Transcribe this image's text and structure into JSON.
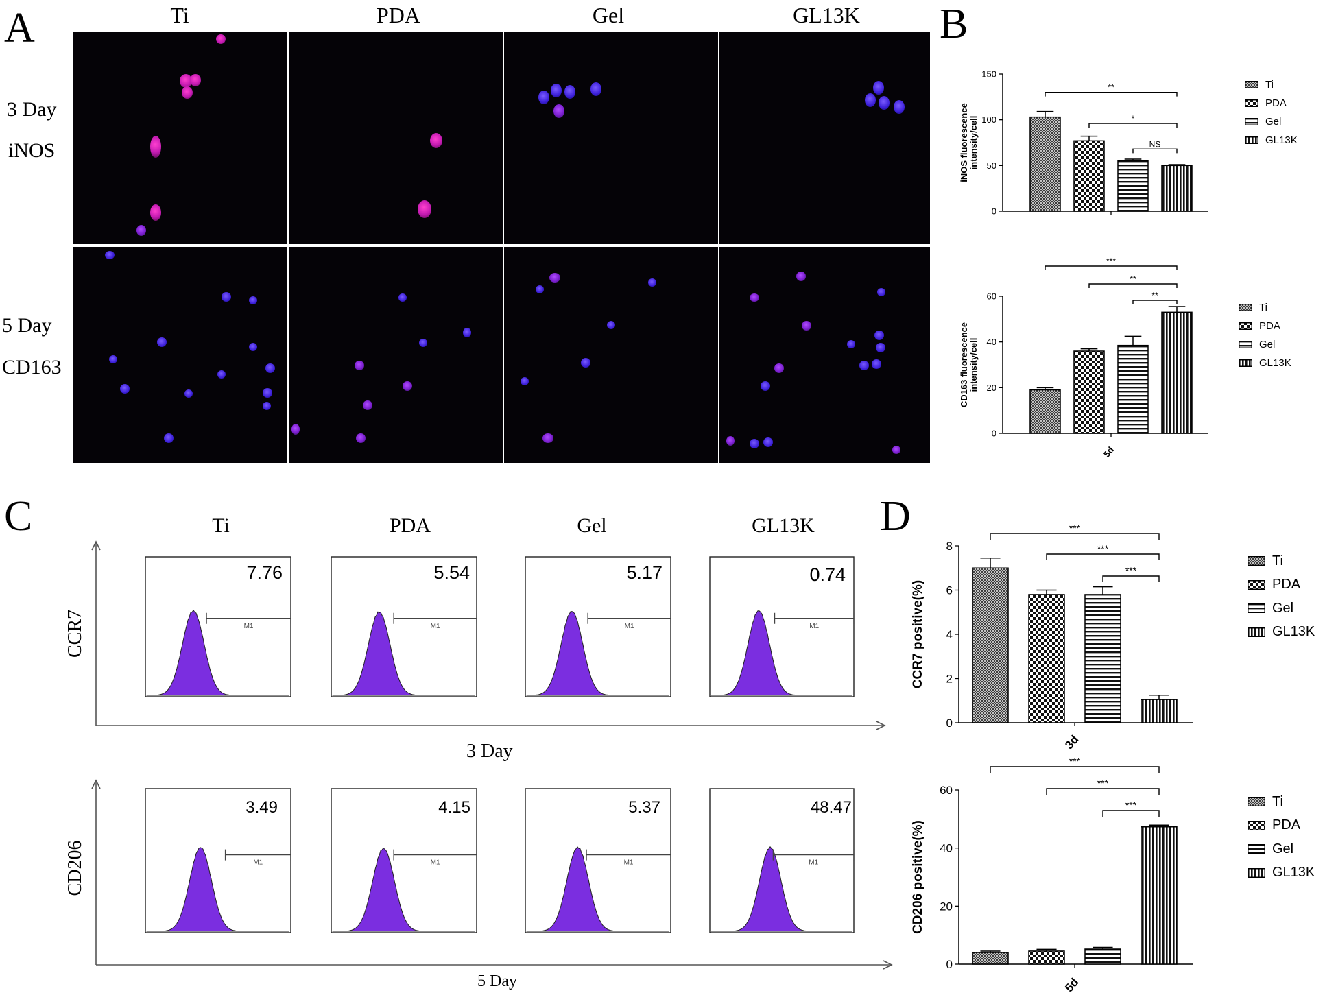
{
  "panels": {
    "a": "A",
    "b": "B",
    "c": "C",
    "d": "D"
  },
  "panel_a": {
    "columns": [
      "Ti",
      "PDA",
      "Gel",
      "GL13K"
    ],
    "rows": [
      {
        "day": "3 Day",
        "marker": "iNOS"
      },
      {
        "day": "5 Day",
        "marker": "CD163"
      }
    ]
  },
  "panel_c": {
    "columns": [
      "Ti",
      "PDA",
      "Gel",
      "GL13K"
    ],
    "gate_label": "M1",
    "rows": [
      {
        "marker": "CCR7",
        "day": "3 Day",
        "values": [
          "7.76",
          "5.54",
          "5.17",
          "0.74"
        ]
      },
      {
        "marker": "CD206",
        "day": "5 Day",
        "values": [
          "3.49",
          "4.15",
          "5.37",
          "48.47"
        ]
      }
    ]
  },
  "colors": {
    "pink": "#c21ab0",
    "blue": "#3b1fd8",
    "histogram": "#7b2ee0"
  },
  "chart_data": [
    {
      "id": "B-top",
      "type": "bar",
      "ylabel": "iNOS fluorescence intensity/cell",
      "xlabel": "",
      "ylim": [
        0,
        150
      ],
      "yticks": [
        0,
        50,
        100,
        150
      ],
      "categories": [
        "Ti",
        "PDA",
        "Gel",
        "GL13K"
      ],
      "values": [
        103,
        77,
        55,
        50
      ],
      "errors": [
        6,
        5,
        2,
        1
      ],
      "significance": [
        {
          "from": "Ti",
          "to": "GL13K",
          "label": "**"
        },
        {
          "from": "PDA",
          "to": "GL13K",
          "label": "*"
        },
        {
          "from": "Gel",
          "to": "GL13K",
          "label": "NS"
        }
      ],
      "legend": [
        "Ti",
        "PDA",
        "Gel",
        "GL13K"
      ]
    },
    {
      "id": "B-bottom",
      "type": "bar",
      "ylabel": "CD163 fluorescence intensity/cell",
      "xlabel": "5d",
      "ylim": [
        0,
        60
      ],
      "yticks": [
        0,
        20,
        40,
        60
      ],
      "categories": [
        "Ti",
        "PDA",
        "Gel",
        "GL13K"
      ],
      "values": [
        19,
        36,
        38.5,
        53
      ],
      "errors": [
        1,
        1,
        4,
        2.5
      ],
      "significance": [
        {
          "from": "Ti",
          "to": "GL13K",
          "label": "***"
        },
        {
          "from": "PDA",
          "to": "GL13K",
          "label": "**"
        },
        {
          "from": "Gel",
          "to": "GL13K",
          "label": "**"
        }
      ],
      "legend": [
        "Ti",
        "PDA",
        "Gel",
        "GL13K"
      ]
    },
    {
      "id": "D-top",
      "type": "bar",
      "ylabel": "CCR7 positive(%)",
      "xlabel": "3d",
      "ylim": [
        0,
        8
      ],
      "yticks": [
        0,
        2,
        4,
        6,
        8
      ],
      "categories": [
        "Ti",
        "PDA",
        "Gel",
        "GL13K"
      ],
      "values": [
        7.0,
        5.8,
        5.8,
        1.05
      ],
      "errors": [
        0.45,
        0.2,
        0.35,
        0.2
      ],
      "significance": [
        {
          "from": "Ti",
          "to": "GL13K",
          "label": "***"
        },
        {
          "from": "PDA",
          "to": "GL13K",
          "label": "***"
        },
        {
          "from": "Gel",
          "to": "GL13K",
          "label": "***"
        }
      ],
      "legend": [
        "Ti",
        "PDA",
        "Gel",
        "GL13K"
      ]
    },
    {
      "id": "D-bottom",
      "type": "bar",
      "ylabel": "CD206 positive(%)",
      "xlabel": "5d",
      "ylim": [
        0,
        60
      ],
      "yticks": [
        0,
        20,
        40,
        60
      ],
      "categories": [
        "Ti",
        "PDA",
        "Gel",
        "GL13K"
      ],
      "values": [
        4.0,
        4.5,
        5.2,
        47.3
      ],
      "errors": [
        0.5,
        0.6,
        0.6,
        0.6
      ],
      "significance": [
        {
          "from": "Ti",
          "to": "GL13K",
          "label": "***"
        },
        {
          "from": "PDA",
          "to": "GL13K",
          "label": "***"
        },
        {
          "from": "Gel",
          "to": "GL13K",
          "label": "***"
        }
      ],
      "legend": [
        "Ti",
        "PDA",
        "Gel",
        "GL13K"
      ]
    }
  ]
}
